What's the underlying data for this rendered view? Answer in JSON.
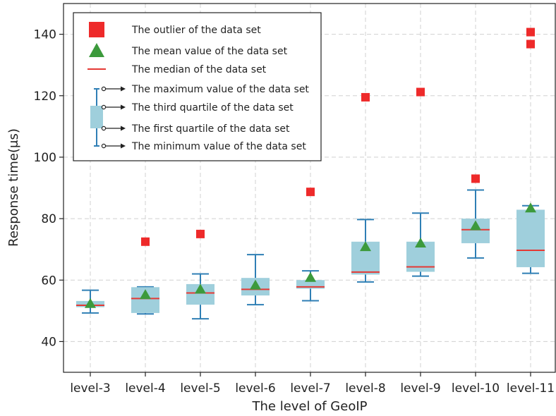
{
  "chart_data": {
    "type": "box",
    "xlabel": "The level of GeoIP",
    "ylabel": "Response time(μs)",
    "ylim": [
      30,
      150
    ],
    "yticks": [
      40,
      60,
      80,
      100,
      120,
      140
    ],
    "grid": true,
    "legend_position": "top-left",
    "colors": {
      "box_fill": "#9fcfdc",
      "whisker": "#2f7fb5",
      "median": "#e53935",
      "mean": "#3c9a3c",
      "outlier": "#ee2a2a",
      "grid": "#d0d0d0"
    },
    "categories": [
      "level-3",
      "level-4",
      "level-5",
      "level-6",
      "level-7",
      "level-8",
      "level-9",
      "level-10",
      "level-11"
    ],
    "boxes": [
      {
        "min": 49.3,
        "q1": 51.2,
        "median": 51.8,
        "q3": 53.2,
        "max": 56.7,
        "mean": 52.3,
        "outliers": []
      },
      {
        "min": 49.0,
        "q1": 49.3,
        "median": 54.0,
        "q3": 57.7,
        "max": 57.8,
        "mean": 55.2,
        "outliers": [
          72.5
        ]
      },
      {
        "min": 47.4,
        "q1": 52.0,
        "median": 55.8,
        "q3": 58.7,
        "max": 62.0,
        "mean": 57.0,
        "outliers": [
          75.0
        ]
      },
      {
        "min": 52.0,
        "q1": 55.0,
        "median": 57.0,
        "q3": 60.7,
        "max": 68.3,
        "mean": 58.3,
        "outliers": []
      },
      {
        "min": 53.3,
        "q1": 57.2,
        "median": 57.8,
        "q3": 60.0,
        "max": 63.0,
        "mean": 60.8,
        "outliers": [
          88.7
        ]
      },
      {
        "min": 59.4,
        "q1": 61.8,
        "median": 62.6,
        "q3": 72.5,
        "max": 79.7,
        "mean": 70.8,
        "outliers": [
          119.5
        ]
      },
      {
        "min": 61.3,
        "q1": 62.7,
        "median": 64.3,
        "q3": 72.5,
        "max": 81.8,
        "mean": 72.0,
        "outliers": [
          121.2
        ]
      },
      {
        "min": 67.2,
        "q1": 72.0,
        "median": 76.4,
        "q3": 80.0,
        "max": 89.3,
        "mean": 77.6,
        "outliers": [
          93.0
        ]
      },
      {
        "min": 62.2,
        "q1": 64.2,
        "median": 69.7,
        "q3": 82.9,
        "max": 84.2,
        "mean": 83.4,
        "outliers": [
          136.8,
          140.7
        ]
      }
    ],
    "legend": [
      {
        "kind": "outlier",
        "label": "The outlier of the data set"
      },
      {
        "kind": "mean",
        "label": "The mean value of the data set"
      },
      {
        "kind": "median",
        "label": "The median of the data set"
      },
      {
        "kind": "max",
        "label": "The maximum value of the data set"
      },
      {
        "kind": "q3",
        "label": "The third quartile of the data set"
      },
      {
        "kind": "q1",
        "label": "The first quartile of the data set"
      },
      {
        "kind": "min",
        "label": "The minimum value of the data set"
      }
    ]
  }
}
